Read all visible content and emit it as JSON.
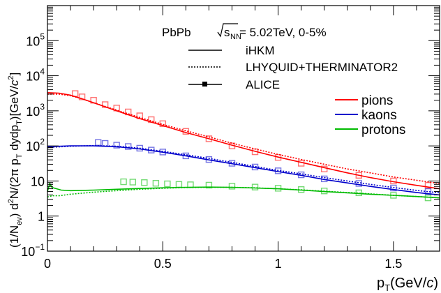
{
  "chart_data": {
    "type": "line",
    "title": "",
    "xlabel": "p_T(GeV/c)",
    "ylabel": "(1/N_ev) d²N/(2π p_T dydp_T)[GeV/c²]",
    "xlim": [
      0,
      1.7
    ],
    "ylim_log10": [
      -1,
      6
    ],
    "y_scale": "log",
    "grid": false,
    "x_ticks": [
      0,
      0.5,
      1,
      1.5
    ],
    "y_ticks": [
      -1,
      0,
      1,
      2,
      3,
      4,
      5
    ],
    "annotations": {
      "system": "PbPb",
      "sqrt_label": "s",
      "sqrt_sub": "NN",
      "energy": " = 5.02TeV, 0-5%"
    },
    "legend_styles": [
      {
        "label": "iHKM",
        "style": "solid"
      },
      {
        "label": "LHYQUID+THERMINATOR2",
        "style": "dotted"
      },
      {
        "label": "ALICE",
        "style": "markers"
      }
    ],
    "legend_species": [
      {
        "label": "pions",
        "color": "#ff0000"
      },
      {
        "label": "kaons",
        "color": "#0000cc"
      },
      {
        "label": "protons",
        "color": "#00bb00"
      }
    ],
    "series": [
      {
        "name": "pions",
        "model": "iHKM",
        "style": "solid",
        "color": "#ff0000",
        "x": [
          0.0,
          0.05,
          0.1,
          0.15,
          0.2,
          0.3,
          0.4,
          0.5,
          0.6,
          0.7,
          0.8,
          0.9,
          1.0,
          1.1,
          1.2,
          1.3,
          1.4,
          1.5,
          1.6,
          1.7
        ],
        "y": [
          3300,
          3200,
          2800,
          2200,
          1700,
          1000,
          600,
          380,
          240,
          160,
          105,
          70,
          48,
          34,
          24,
          17,
          12.5,
          9.5,
          7.5,
          6.0
        ]
      },
      {
        "name": "pions",
        "model": "LHYQUID+THERMINATOR2",
        "style": "dotted",
        "color": "#ff0000",
        "x": [
          0.0,
          0.05,
          0.1,
          0.15,
          0.2,
          0.3,
          0.4,
          0.5,
          0.6,
          0.7,
          0.8,
          0.9,
          1.0,
          1.1,
          1.2,
          1.3,
          1.4,
          1.5,
          1.6,
          1.7
        ],
        "y": [
          3000,
          3000,
          2700,
          2200,
          1700,
          1050,
          650,
          410,
          270,
          180,
          120,
          82,
          57,
          41,
          30,
          22,
          17,
          13,
          10.5,
          8.5
        ]
      },
      {
        "name": "pions",
        "model": "ALICE",
        "style": "markers",
        "color": "#ff0000",
        "x": [
          0.12,
          0.15,
          0.2,
          0.25,
          0.3,
          0.35,
          0.4,
          0.45,
          0.5,
          0.6,
          0.7,
          0.8,
          0.9,
          1.0,
          1.1,
          1.2,
          1.35,
          1.5,
          1.65
        ],
        "y": [
          3100,
          2500,
          2000,
          1500,
          1200,
          930,
          720,
          560,
          430,
          260,
          160,
          100,
          68,
          47,
          32,
          22,
          14.5,
          10,
          7.5
        ]
      },
      {
        "name": "kaons",
        "model": "iHKM",
        "style": "solid",
        "color": "#0000cc",
        "x": [
          0.0,
          0.1,
          0.2,
          0.3,
          0.4,
          0.5,
          0.6,
          0.7,
          0.8,
          0.9,
          1.0,
          1.1,
          1.2,
          1.3,
          1.4,
          1.5,
          1.6,
          1.7
        ],
        "y": [
          95,
          100,
          100,
          95,
          82,
          66,
          52,
          40,
          31,
          24,
          18.5,
          14.5,
          11,
          8.8,
          7,
          5.7,
          4.7,
          4.0
        ]
      },
      {
        "name": "kaons",
        "model": "LHYQUID+THERMINATOR2",
        "style": "dotted",
        "color": "#0000cc",
        "x": [
          0.0,
          0.1,
          0.2,
          0.3,
          0.4,
          0.5,
          0.6,
          0.7,
          0.8,
          0.9,
          1.0,
          1.1,
          1.2,
          1.3,
          1.4,
          1.5,
          1.6,
          1.7
        ],
        "y": [
          90,
          98,
          102,
          98,
          86,
          70,
          56,
          44,
          34,
          26,
          20,
          16,
          12.5,
          10,
          8,
          6.5,
          5.4,
          4.6
        ]
      },
      {
        "name": "kaons",
        "model": "ALICE",
        "style": "markers",
        "color": "#0000cc",
        "x": [
          0.22,
          0.25,
          0.3,
          0.35,
          0.4,
          0.45,
          0.5,
          0.6,
          0.7,
          0.8,
          0.9,
          1.0,
          1.1,
          1.2,
          1.35,
          1.5,
          1.65
        ],
        "y": [
          125,
          118,
          105,
          96,
          86,
          76,
          67,
          52,
          41,
          32,
          25,
          19.5,
          15,
          11.5,
          8.5,
          6.3,
          5.0
        ]
      },
      {
        "name": "protons",
        "model": "iHKM",
        "style": "solid",
        "color": "#00bb00",
        "x": [
          0.0,
          0.01,
          0.02,
          0.04,
          0.06,
          0.1,
          0.2,
          0.3,
          0.4,
          0.5,
          0.6,
          0.7,
          0.8,
          0.9,
          1.0,
          1.1,
          1.2,
          1.3,
          1.4,
          1.5,
          1.6,
          1.7
        ],
        "y": [
          5.0,
          8.5,
          6.5,
          6.0,
          5.5,
          5.3,
          5.5,
          5.8,
          6.1,
          6.4,
          6.6,
          6.7,
          6.6,
          6.3,
          6.0,
          5.5,
          5.0,
          4.6,
          4.2,
          3.9,
          3.6,
          3.3
        ]
      },
      {
        "name": "protons",
        "model": "LHYQUID+THERMINATOR2",
        "style": "dotted",
        "color": "#00bb00",
        "x": [
          0.0,
          0.02,
          0.05,
          0.1,
          0.2,
          0.3,
          0.4,
          0.5,
          0.6,
          0.7,
          0.8,
          0.9,
          1.0,
          1.1,
          1.2,
          1.3,
          1.4,
          1.5,
          1.6,
          1.7
        ],
        "y": [
          3.5,
          3.8,
          3.8,
          4.2,
          4.8,
          5.3,
          5.8,
          6.2,
          6.5,
          6.6,
          6.6,
          6.4,
          6.0,
          5.6,
          5.1,
          4.7,
          4.3,
          3.9,
          3.6,
          3.3
        ]
      },
      {
        "name": "protons",
        "model": "ALICE",
        "style": "markers",
        "color": "#00bb00",
        "x": [
          0.33,
          0.37,
          0.42,
          0.47,
          0.52,
          0.57,
          0.62,
          0.7,
          0.8,
          0.9,
          1.0,
          1.1,
          1.2,
          1.35,
          1.5,
          1.65
        ],
        "y": [
          9.5,
          9.3,
          9.0,
          8.6,
          8.3,
          8.0,
          7.8,
          7.6,
          7.1,
          6.7,
          6.2,
          5.7,
          5.2,
          4.6,
          3.9,
          3.3
        ]
      }
    ]
  }
}
